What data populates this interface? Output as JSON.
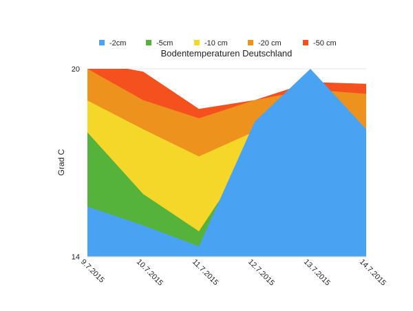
{
  "chart_data": {
    "type": "area",
    "stacked": false,
    "title": "Bodentemperaturen Deutschland",
    "xlabel": "",
    "ylabel": "Grad C",
    "ylim": [
      14,
      20
    ],
    "yticks": [
      "20",
      "14"
    ],
    "categories": [
      "9.7.2015",
      "10.7.2015",
      "11.7.2015",
      "12.7.2015",
      "13.7.2015",
      "14.7.2015"
    ],
    "legend_position": "top",
    "grid": true,
    "series": [
      {
        "name": "-50 cm",
        "color": "#f4511e",
        "values": [
          20.23,
          19.91,
          18.72,
          19.0,
          19.58,
          19.52
        ]
      },
      {
        "name": "-20 cm",
        "color": "#ed921d",
        "values": [
          20.0,
          19.0,
          18.42,
          19.0,
          19.34,
          19.2
        ]
      },
      {
        "name": "-10 cm",
        "color": "#f5d72a",
        "values": [
          18.99,
          18.07,
          17.2,
          18.0,
          18.5,
          18.0
        ]
      },
      {
        "name": "-5cm",
        "color": "#55b33c",
        "values": [
          17.97,
          16.0,
          14.81,
          17.5,
          18.0,
          17.5
        ]
      },
      {
        "name": "-2cm",
        "color": "#4aa2f2",
        "values": [
          15.6,
          15.0,
          14.33,
          18.31,
          20.0,
          18.07
        ]
      }
    ]
  }
}
